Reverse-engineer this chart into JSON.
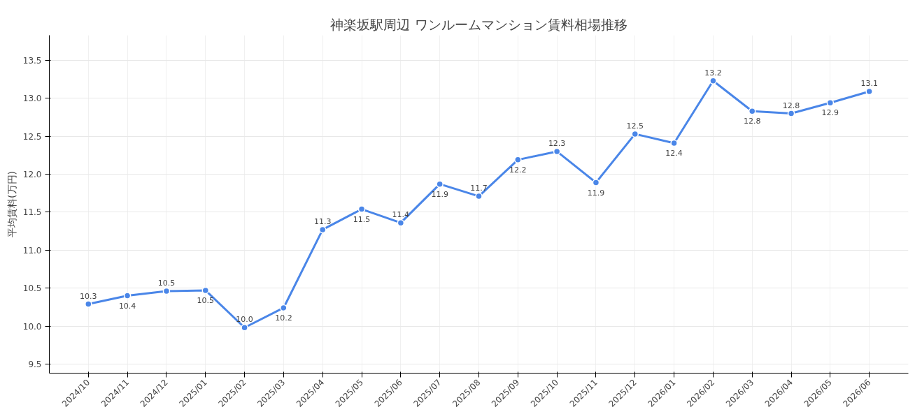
{
  "chart_data": {
    "type": "line",
    "title": "神楽坂駅周辺 ワンルームマンション賃料相場推移",
    "ylabel": "平均賃料(万円)",
    "categories": [
      "2024/10",
      "2024/11",
      "2024/12",
      "2025/01",
      "2025/02",
      "2025/03",
      "2025/04",
      "2025/05",
      "2025/06",
      "2025/07",
      "2025/08",
      "2025/09",
      "2025/10",
      "2025/11",
      "2025/12",
      "2026/01",
      "2026/02",
      "2026/03",
      "2026/04",
      "2026/05",
      "2026/06"
    ],
    "series": [
      {
        "color": "#4a86e8",
        "values": [
          10.29,
          10.4,
          10.46,
          10.47,
          9.98,
          10.24,
          11.27,
          11.54,
          11.36,
          11.87,
          11.71,
          12.19,
          12.3,
          11.89,
          12.53,
          12.41,
          13.23,
          12.83,
          12.8,
          12.94,
          13.09
        ],
        "value_labels": [
          "10.3",
          "10.4",
          "10.5",
          "10.5",
          "10.0",
          "10.2",
          "11.3",
          "11.5",
          "11.4",
          "11.9",
          "11.7",
          "12.2",
          "12.3",
          "11.9",
          "12.5",
          "12.4",
          "13.2",
          "12.8",
          "12.8",
          "12.9",
          "13.1"
        ]
      }
    ],
    "ylim": [
      9.38,
      13.83
    ],
    "yticks": [
      9.5,
      {
        "value": 10,
        "label": "10.0"
      },
      10.5,
      {
        "value": 11,
        "label": "11.0"
      },
      11.5,
      {
        "value": 12,
        "label": "12.0"
      },
      12.5,
      {
        "value": 13,
        "label": "13.0"
      },
      13.5
    ],
    "grid": true,
    "marker": "circle",
    "line_style": "solid"
  }
}
